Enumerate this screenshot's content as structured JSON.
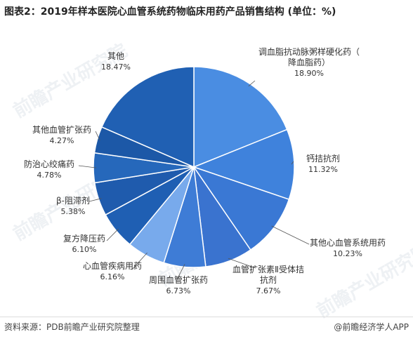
{
  "title": "图表2：2019年样本医院心血管系统药物临床用药产品销售结构 (单位：%)",
  "footer": {
    "source": "资料来源：PDB前瞻产业研究院整理",
    "brand": "@前瞻经济学人APP"
  },
  "watermark": "前瞻产业研究院",
  "colors": {
    "slices": [
      "#4a8de2",
      "#3f82dc",
      "#3a78d4",
      "#3a73cf",
      "#3e7cd6",
      "#78aaec",
      "#1f5fb3",
      "#1f5bad",
      "#2668bb",
      "#1c58a7",
      "#2060b3"
    ],
    "leader": "#555555"
  },
  "chart_data": {
    "type": "pie",
    "title": "2019年样本医院心血管系统药物临床用药产品销售结构",
    "unit": "%",
    "slices": [
      {
        "label": "调血脂抗动脉粥样硬化药（降血脂药）",
        "value": 18.9,
        "value_label": "18.90%"
      },
      {
        "label": "钙拮抗剂",
        "value": 11.32,
        "value_label": "11.32%"
      },
      {
        "label": "其他心血管系统用药",
        "value": 10.23,
        "value_label": "10.23%"
      },
      {
        "label": "血管扩张素Ⅱ受体拮抗剂",
        "value": 7.67,
        "value_label": "7.67%"
      },
      {
        "label": "周围血管扩张药",
        "value": 6.73,
        "value_label": "6.73%"
      },
      {
        "label": "心血管疾病用药",
        "value": 6.16,
        "value_label": "6.16%"
      },
      {
        "label": "复方降压药",
        "value": 6.1,
        "value_label": "6.10%"
      },
      {
        "label": "β-阻滞剂",
        "value": 5.38,
        "value_label": "5.38%"
      },
      {
        "label": "防治心绞痛药",
        "value": 4.78,
        "value_label": "4.78%"
      },
      {
        "label": "其他血管扩张药",
        "value": 4.27,
        "value_label": "4.27%"
      },
      {
        "label": "其他",
        "value": 18.47,
        "value_label": "18.47%"
      }
    ]
  }
}
